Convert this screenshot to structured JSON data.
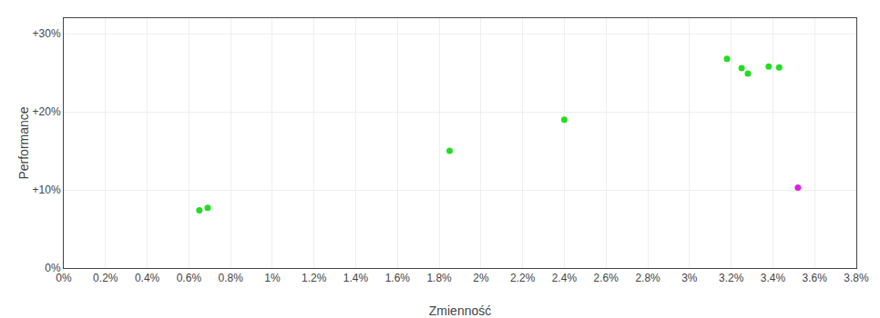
{
  "chart_data": {
    "type": "scatter",
    "xlabel": "Zmienność",
    "ylabel": "Performance",
    "xlim": [
      0.0,
      0.038
    ],
    "ylim": [
      0.0,
      0.32
    ],
    "xticks": [
      {
        "value": 0.0,
        "label": "0%"
      },
      {
        "value": 0.002,
        "label": "0.2%"
      },
      {
        "value": 0.004,
        "label": "0.4%"
      },
      {
        "value": 0.006,
        "label": "0.6%"
      },
      {
        "value": 0.008,
        "label": "0.8%"
      },
      {
        "value": 0.01,
        "label": "1%"
      },
      {
        "value": 0.012,
        "label": "1.2%"
      },
      {
        "value": 0.014,
        "label": "1.4%"
      },
      {
        "value": 0.016,
        "label": "1.6%"
      },
      {
        "value": 0.018,
        "label": "1.8%"
      },
      {
        "value": 0.02,
        "label": "2%"
      },
      {
        "value": 0.022,
        "label": "2.2%"
      },
      {
        "value": 0.024,
        "label": "2.4%"
      },
      {
        "value": 0.026,
        "label": "2.6%"
      },
      {
        "value": 0.028,
        "label": "2.8%"
      },
      {
        "value": 0.03,
        "label": "3%"
      },
      {
        "value": 0.032,
        "label": "3.2%"
      },
      {
        "value": 0.034,
        "label": "3.4%"
      },
      {
        "value": 0.036,
        "label": "3.6%"
      },
      {
        "value": 0.038,
        "label": "3.8%"
      }
    ],
    "yticks": [
      {
        "value": 0.0,
        "label": "0%"
      },
      {
        "value": 0.1,
        "label": "+10%"
      },
      {
        "value": 0.2,
        "label": "+20%"
      },
      {
        "value": 0.3,
        "label": "+30%"
      }
    ],
    "grid": true,
    "series": [
      {
        "color": "#22dd22",
        "x": [
          0.0065,
          0.0069,
          0.0185,
          0.024,
          0.0318,
          0.0325,
          0.0328,
          0.0338,
          0.0343
        ],
        "values": [
          0.074,
          0.077,
          0.15,
          0.19,
          0.268,
          0.256,
          0.249,
          0.258,
          0.257
        ]
      },
      {
        "color": "#dd22dd",
        "x": [
          0.0352
        ],
        "values": [
          0.103
        ]
      }
    ]
  }
}
